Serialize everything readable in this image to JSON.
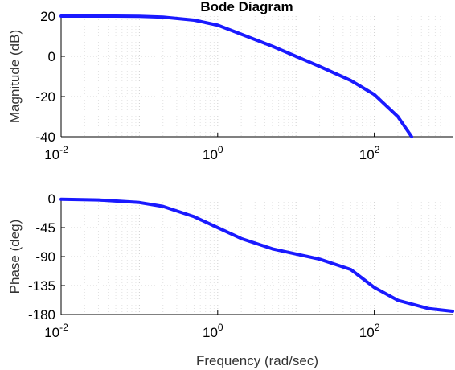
{
  "chart_data": {
    "type": "line",
    "title": "Bode Diagram",
    "xlabel": "Frequency (rad/sec)",
    "x_scale": "log",
    "xlim": [
      0.01,
      1000
    ],
    "x_ticks": [
      0.01,
      1,
      100
    ],
    "x_tick_labels": [
      {
        "base": "10",
        "exp": "-2"
      },
      {
        "base": "10",
        "exp": "0"
      },
      {
        "base": "10",
        "exp": "2"
      }
    ],
    "grid": true,
    "line_color": "#1a1aff",
    "panels": [
      {
        "name": "magnitude",
        "ylabel": "Magnitude (dB)",
        "ylim": [
          -40,
          20
        ],
        "y_ticks": [
          20,
          0,
          -20,
          -40
        ],
        "y_tick_labels": [
          "20",
          "0",
          "-20",
          "-40"
        ],
        "x": [
          0.01,
          0.05,
          0.1,
          0.2,
          0.5,
          1,
          2,
          5,
          10,
          20,
          50,
          100,
          200,
          300
        ],
        "y": [
          20,
          20,
          19.9,
          19.5,
          18,
          15.5,
          11,
          5,
          0,
          -5,
          -12,
          -19,
          -30,
          -40
        ]
      },
      {
        "name": "phase",
        "ylabel": "Phase (deg)",
        "ylim": [
          -180,
          0
        ],
        "y_ticks": [
          0,
          -45,
          -90,
          -135,
          -180
        ],
        "y_tick_labels": [
          "0",
          "-45",
          "-90",
          "-135",
          "-180"
        ],
        "x": [
          0.01,
          0.03,
          0.1,
          0.2,
          0.5,
          1,
          2,
          5,
          10,
          20,
          50,
          100,
          200,
          500,
          1000
        ],
        "y": [
          -1,
          -2,
          -6,
          -12,
          -28,
          -45,
          -62,
          -78,
          -86,
          -94,
          -110,
          -138,
          -158,
          -171,
          -175
        ]
      }
    ]
  }
}
